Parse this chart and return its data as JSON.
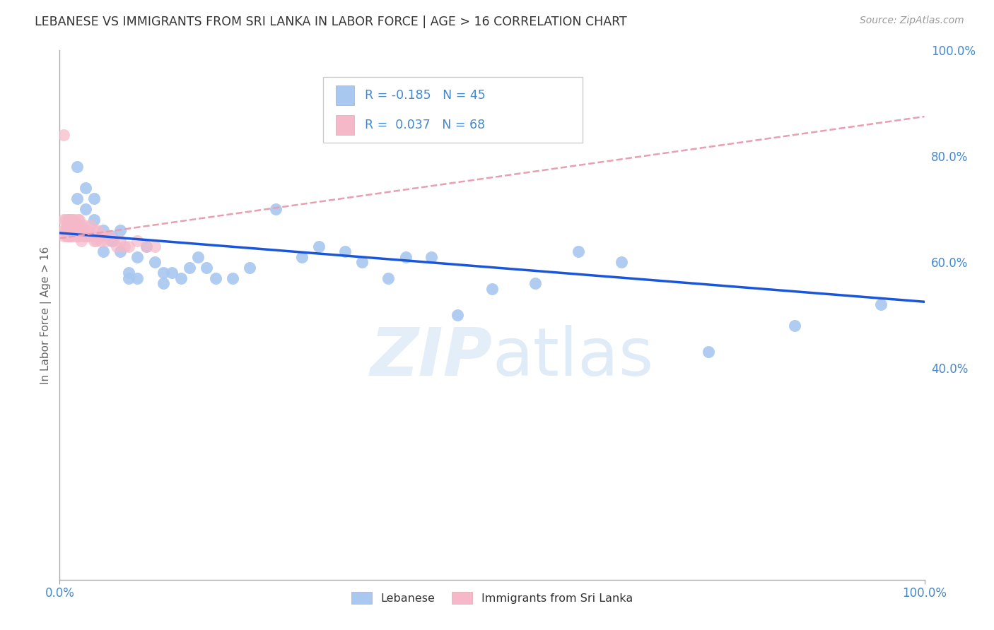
{
  "title": "LEBANESE VS IMMIGRANTS FROM SRI LANKA IN LABOR FORCE | AGE > 16 CORRELATION CHART",
  "source": "Source: ZipAtlas.com",
  "ylabel": "In Labor Force | Age > 16",
  "xlim": [
    0.0,
    1.0
  ],
  "ylim": [
    0.0,
    1.0
  ],
  "background_color": "#ffffff",
  "grid_color": "#cccccc",
  "watermark_text": "ZIPatlas",
  "blue_color": "#a8c8f0",
  "pink_color": "#f5b8c8",
  "blue_line_color": "#1a56db",
  "pink_line_color": "#e8a0b0",
  "tick_label_color": "#4488cc",
  "R_blue": -0.185,
  "N_blue": 45,
  "R_pink": 0.037,
  "N_pink": 68,
  "blue_scatter_x": [
    0.01,
    0.02,
    0.02,
    0.03,
    0.03,
    0.04,
    0.04,
    0.05,
    0.05,
    0.06,
    0.06,
    0.07,
    0.07,
    0.08,
    0.08,
    0.09,
    0.09,
    0.1,
    0.11,
    0.12,
    0.12,
    0.13,
    0.14,
    0.15,
    0.16,
    0.17,
    0.18,
    0.2,
    0.22,
    0.25,
    0.28,
    0.3,
    0.33,
    0.35,
    0.38,
    0.4,
    0.43,
    0.46,
    0.5,
    0.55,
    0.6,
    0.65,
    0.75,
    0.85,
    0.95
  ],
  "blue_scatter_y": [
    0.68,
    0.78,
    0.72,
    0.74,
    0.7,
    0.72,
    0.68,
    0.66,
    0.62,
    0.65,
    0.64,
    0.62,
    0.66,
    0.58,
    0.57,
    0.61,
    0.57,
    0.63,
    0.6,
    0.58,
    0.56,
    0.58,
    0.57,
    0.59,
    0.61,
    0.59,
    0.57,
    0.57,
    0.59,
    0.7,
    0.61,
    0.63,
    0.62,
    0.6,
    0.57,
    0.61,
    0.61,
    0.5,
    0.55,
    0.56,
    0.62,
    0.6,
    0.43,
    0.48,
    0.52
  ],
  "pink_scatter_x": [
    0.005,
    0.005,
    0.005,
    0.007,
    0.007,
    0.008,
    0.008,
    0.009,
    0.009,
    0.01,
    0.01,
    0.01,
    0.011,
    0.011,
    0.012,
    0.012,
    0.012,
    0.013,
    0.013,
    0.014,
    0.014,
    0.015,
    0.015,
    0.016,
    0.016,
    0.017,
    0.017,
    0.018,
    0.018,
    0.019,
    0.019,
    0.02,
    0.02,
    0.021,
    0.021,
    0.022,
    0.022,
    0.023,
    0.024,
    0.025,
    0.025,
    0.026,
    0.027,
    0.028,
    0.03,
    0.032,
    0.034,
    0.036,
    0.038,
    0.04,
    0.042,
    0.044,
    0.046,
    0.048,
    0.05,
    0.054,
    0.058,
    0.062,
    0.066,
    0.07,
    0.075,
    0.08,
    0.09,
    0.1,
    0.11,
    0.03,
    0.04,
    0.005
  ],
  "pink_scatter_y": [
    0.68,
    0.66,
    0.65,
    0.68,
    0.66,
    0.67,
    0.65,
    0.67,
    0.65,
    0.68,
    0.66,
    0.65,
    0.67,
    0.65,
    0.68,
    0.66,
    0.65,
    0.67,
    0.65,
    0.68,
    0.66,
    0.68,
    0.66,
    0.67,
    0.65,
    0.68,
    0.66,
    0.67,
    0.66,
    0.67,
    0.65,
    0.67,
    0.65,
    0.68,
    0.66,
    0.67,
    0.65,
    0.68,
    0.67,
    0.66,
    0.64,
    0.66,
    0.65,
    0.67,
    0.65,
    0.66,
    0.65,
    0.67,
    0.65,
    0.66,
    0.64,
    0.66,
    0.65,
    0.64,
    0.65,
    0.64,
    0.65,
    0.64,
    0.63,
    0.64,
    0.63,
    0.63,
    0.64,
    0.63,
    0.63,
    0.65,
    0.64,
    0.84
  ],
  "blue_trend_x0": 0.0,
  "blue_trend_x1": 1.0,
  "blue_trend_y0": 0.655,
  "blue_trend_y1": 0.525,
  "pink_trend_x0": 0.0,
  "pink_trend_x1": 1.0,
  "pink_trend_y0": 0.645,
  "pink_trend_y1": 0.875,
  "yticks": [
    0.4,
    0.6,
    0.8,
    1.0
  ],
  "ytick_labels": [
    "40.0%",
    "60.0%",
    "80.0%",
    "100.0%"
  ],
  "xtick_labels_left": [
    "0.0%"
  ],
  "xtick_labels_right": [
    "100.0%"
  ]
}
